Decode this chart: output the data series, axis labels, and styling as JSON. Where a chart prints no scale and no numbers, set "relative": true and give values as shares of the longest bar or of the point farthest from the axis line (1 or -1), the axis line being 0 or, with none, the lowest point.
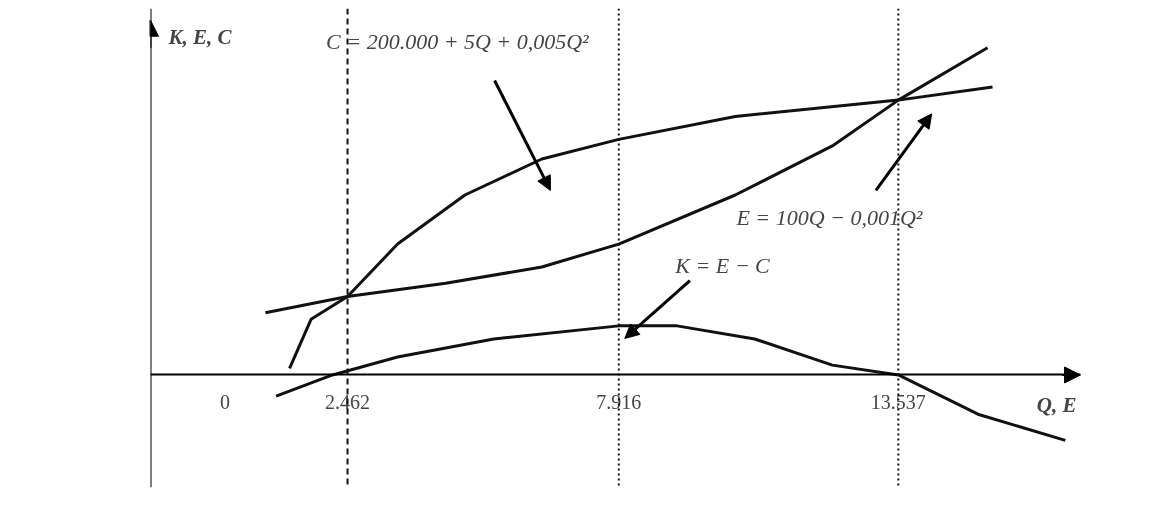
{
  "chart_data": {
    "type": "line",
    "relative": true,
    "xlabel": "Q, E",
    "ylabel": "K, E, C",
    "xlim": [
      -1500,
      17200
    ],
    "xticks": [
      0,
      {
        "value": 2462,
        "label": "2.462"
      },
      {
        "value": 7916,
        "label": "7.916"
      },
      {
        "value": 13537,
        "label": "13.537"
      }
    ],
    "series": [
      {
        "color": "#111111",
        "x": [
          1296,
          1728,
          2462,
          3468,
          4822,
          6369,
          7916,
          10258,
          13537,
          15431
        ],
        "values": [
          0.02,
          0.17,
          0.24,
          0.4,
          0.55,
          0.66,
          0.72,
          0.79,
          0.84,
          0.88
        ]
      },
      {
        "color": "#111111",
        "x": [
          810,
          2462,
          4435,
          6369,
          7916,
          10258,
          12210,
          13537,
          15330
        ],
        "values": [
          0.19,
          0.24,
          0.28,
          0.33,
          0.4,
          0.55,
          0.7,
          0.84,
          1.0
        ]
      },
      {
        "color": "#111111",
        "x": [
          1026,
          2160,
          3468,
          5402,
          7916,
          9087,
          10649,
          12210,
          13537,
          15138,
          16895
        ],
        "values": [
          -0.065,
          0,
          0.055,
          0.11,
          0.15,
          0.15,
          0.11,
          0.03,
          0,
          -0.12,
          -0.2
        ]
      }
    ],
    "ref_lines": [
      {
        "axis": "x",
        "value": 2462,
        "line_style": "dashed",
        "color": "#111111"
      },
      {
        "axis": "x",
        "value": 7916,
        "line_style": "dotted",
        "color": "#111111"
      },
      {
        "axis": "x",
        "value": 13537,
        "line_style": "dotted",
        "color": "#111111"
      }
    ],
    "annotations": [
      "C = 200.000 + 5Q + 0,005Q²",
      "E = 100Q − 0,001Q²",
      "K = E − C"
    ],
    "grid": false,
    "marker": "none",
    "line_style": "solid"
  }
}
